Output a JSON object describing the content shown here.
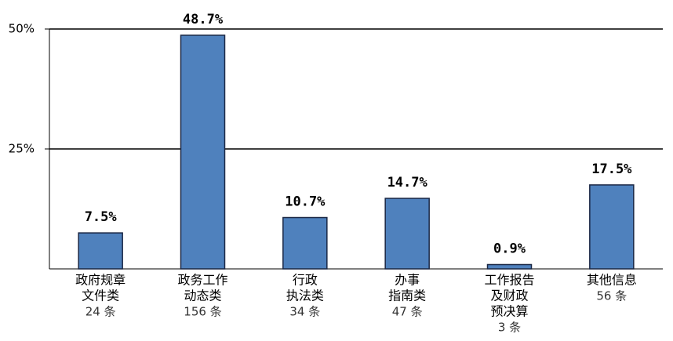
{
  "chart_data": {
    "type": "bar",
    "categories": [
      [
        "政府规章",
        "文件类"
      ],
      [
        "政务工作",
        "动态类"
      ],
      [
        "行政",
        "执法类"
      ],
      [
        "办事",
        "指南类"
      ],
      [
        "工作报告",
        "及财政",
        "预决算"
      ],
      [
        "其他信息"
      ]
    ],
    "counts": [
      "24 条",
      "156 条",
      "34 条",
      "47 条",
      "3 条",
      "56 条"
    ],
    "values": [
      7.5,
      48.7,
      10.7,
      14.7,
      0.9,
      17.5
    ],
    "value_labels": [
      "7.5%",
      "48.7%",
      "10.7%",
      "14.7%",
      "0.9%",
      "17.5%"
    ],
    "color": "#4f81bd",
    "ylim": [
      0,
      50
    ],
    "yticks": [
      {
        "value": 25,
        "label": "25%"
      },
      {
        "value": 50,
        "label": "50%"
      }
    ],
    "grid": true
  }
}
